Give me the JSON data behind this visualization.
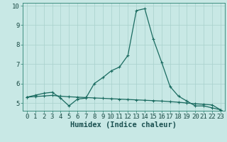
{
  "xlabel": "Humidex (Indice chaleur)",
  "background_color": "#c8e8e5",
  "grid_color": "#a8d0cc",
  "line_color": "#1a6b60",
  "xlim": [
    -0.5,
    23.5
  ],
  "ylim": [
    4.6,
    10.15
  ],
  "yticks": [
    5,
    6,
    7,
    8,
    9,
    10
  ],
  "xtick_labels": [
    "0",
    "1",
    "2",
    "3",
    "4",
    "5",
    "6",
    "7",
    "8",
    "9",
    "10",
    "11",
    "12",
    "13",
    "14",
    "15",
    "16",
    "17",
    "18",
    "19",
    "20",
    "21",
    "22",
    "23"
  ],
  "line1_x": [
    0,
    1,
    2,
    3,
    4,
    5,
    6,
    7,
    8,
    9,
    10,
    11,
    12,
    13,
    14,
    15,
    16,
    17,
    18,
    19,
    20,
    21,
    22,
    23
  ],
  "line1_y": [
    5.3,
    5.4,
    5.5,
    5.55,
    5.25,
    4.85,
    5.2,
    5.25,
    6.0,
    6.3,
    6.65,
    6.85,
    7.45,
    9.75,
    9.85,
    8.3,
    7.1,
    5.85,
    5.35,
    5.1,
    4.85,
    4.85,
    4.75,
    4.65
  ],
  "line2_x": [
    0,
    1,
    2,
    3,
    4,
    5,
    6,
    7,
    8,
    9,
    10,
    11,
    12,
    13,
    14,
    15,
    16,
    17,
    18,
    19,
    20,
    21,
    22,
    23
  ],
  "line2_y": [
    5.3,
    5.33,
    5.36,
    5.39,
    5.35,
    5.32,
    5.3,
    5.28,
    5.26,
    5.24,
    5.22,
    5.2,
    5.18,
    5.16,
    5.14,
    5.12,
    5.1,
    5.07,
    5.04,
    5.0,
    4.96,
    4.93,
    4.9,
    4.65
  ],
  "xlabel_fontsize": 7.5,
  "tick_fontsize": 6.5,
  "marker_size": 3.5,
  "line_width": 0.9
}
